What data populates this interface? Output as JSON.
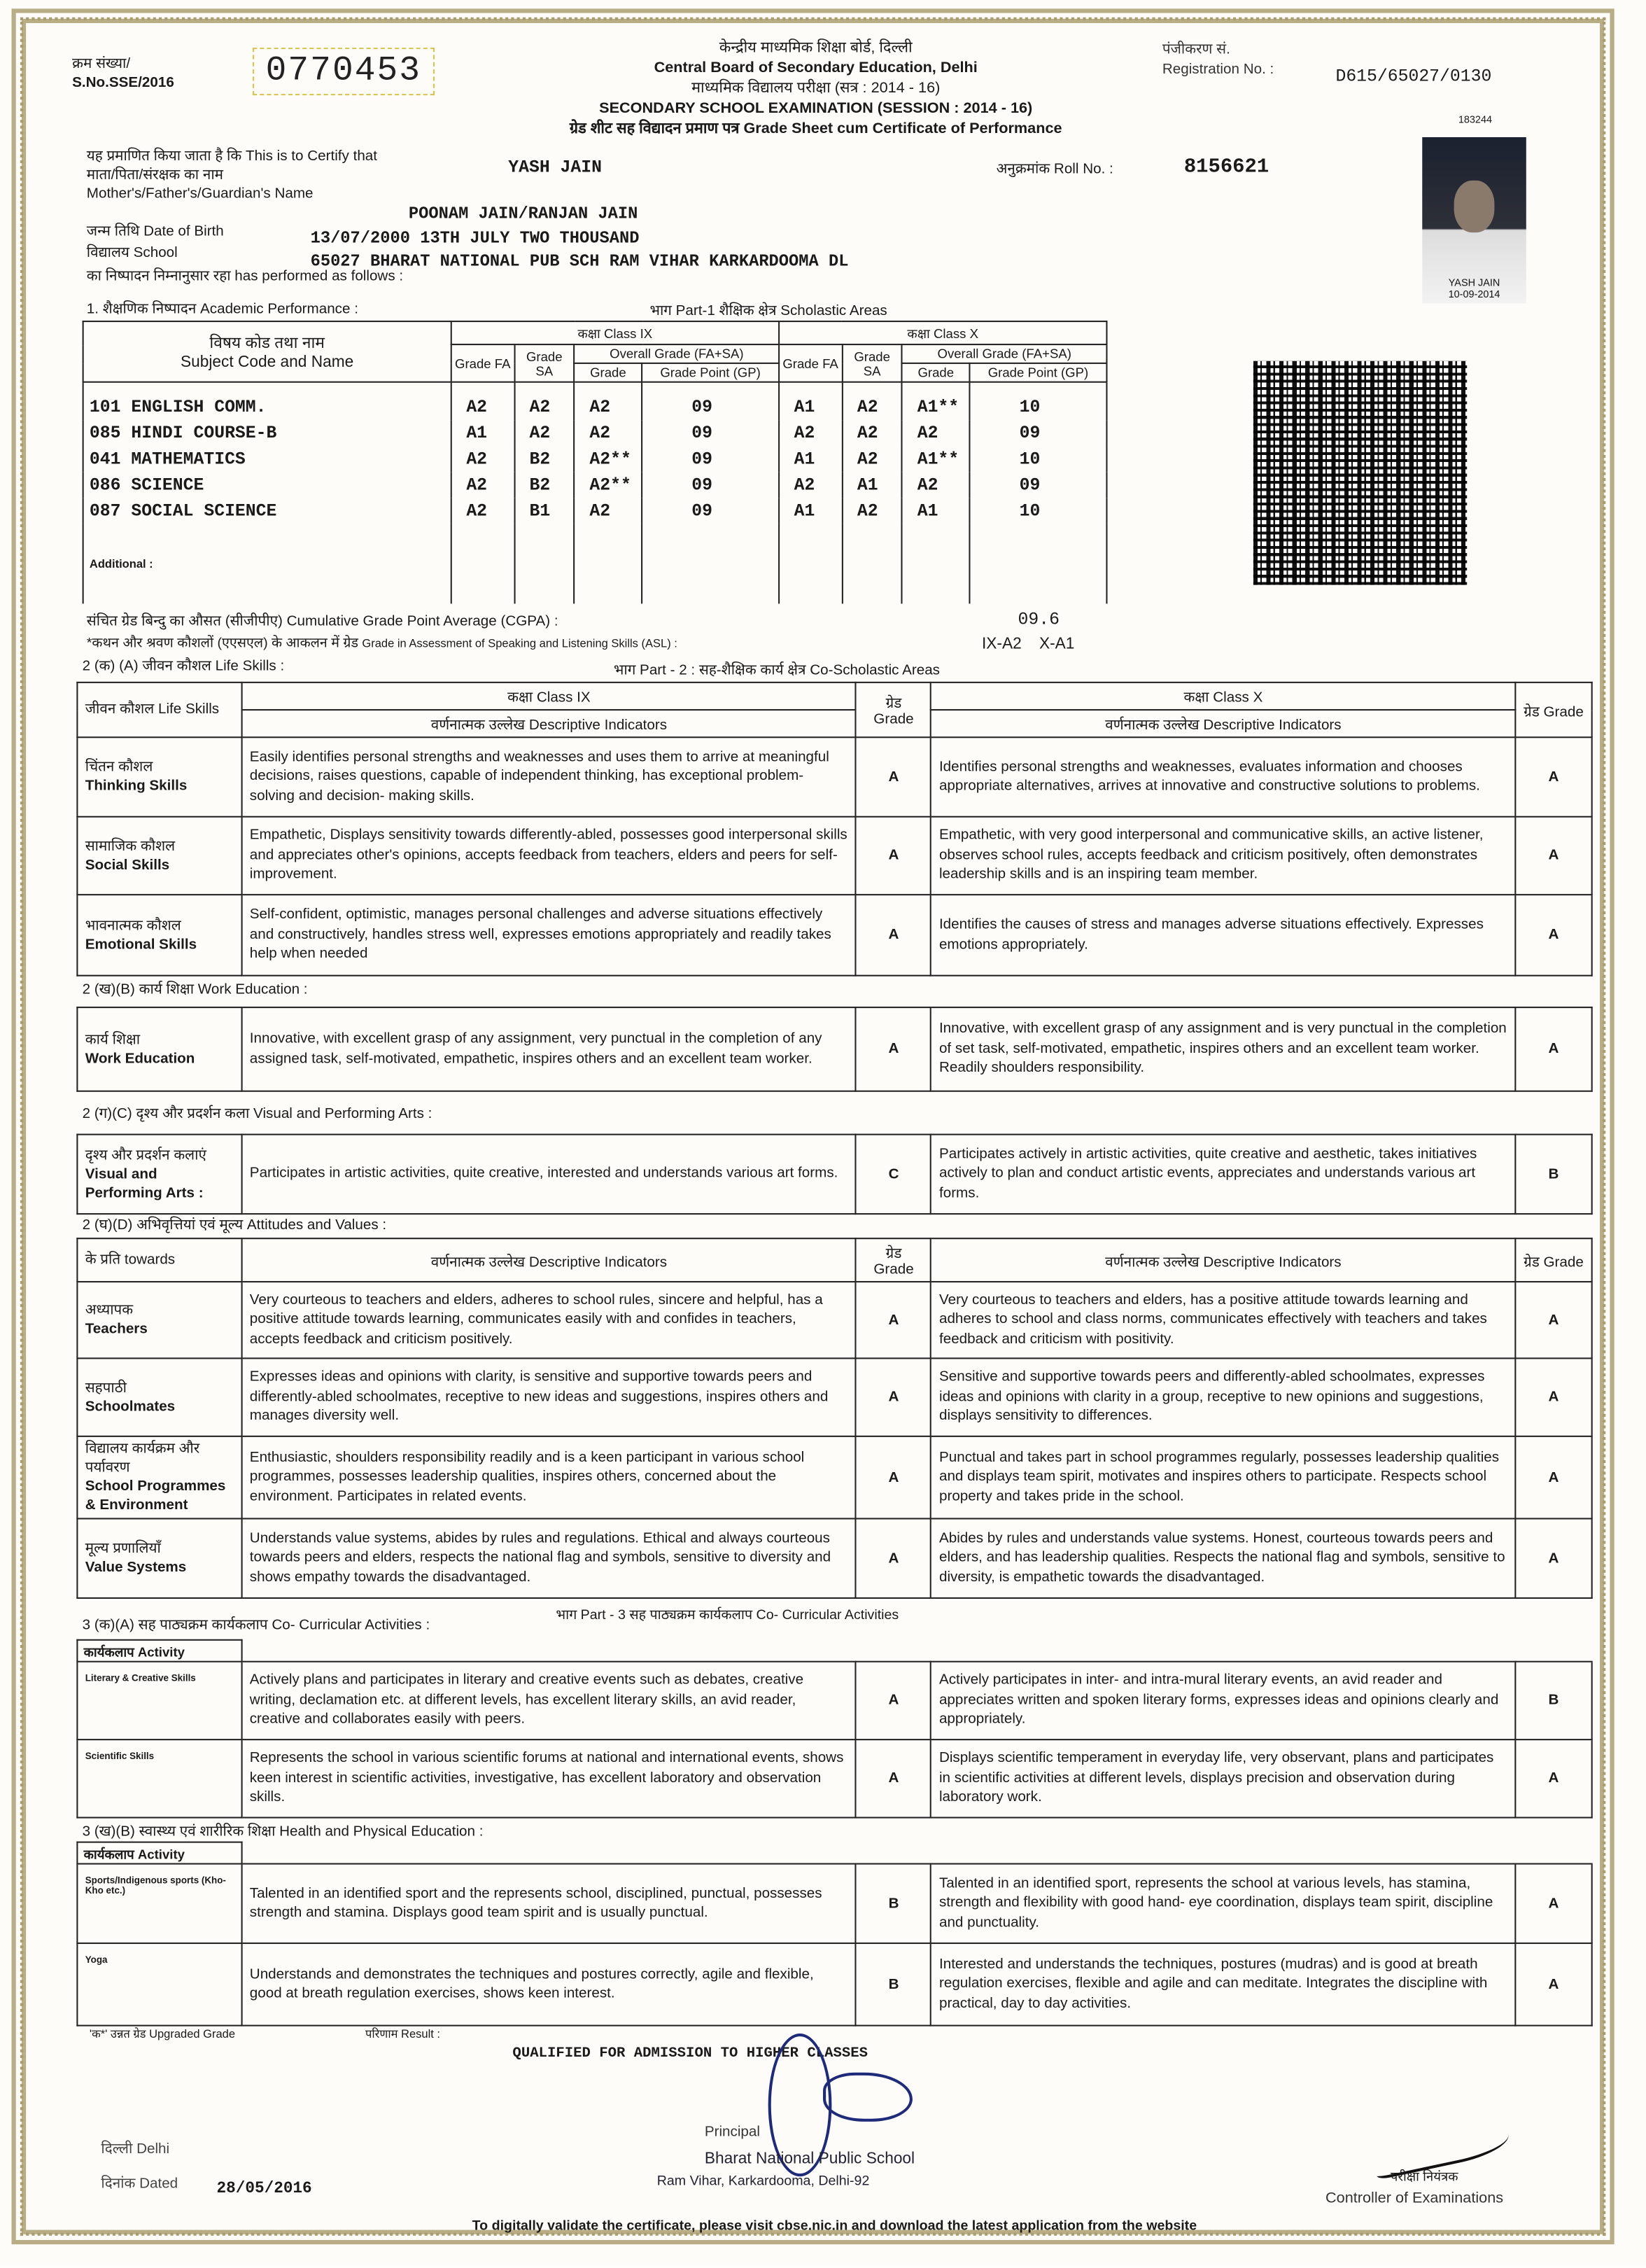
{
  "header": {
    "sno_label_hi": "क्रम संख्या/",
    "sno_label": "S.No.SSE/2016",
    "sno": "0770453",
    "board_hi": "केन्द्रीय माध्यमिक शिक्षा बोर्ड, दिल्ली",
    "board": "Central Board of Secondary Education, Delhi",
    "exam_hi": "माध्यमिक विद्यालय परीक्षा (सत्र : 2014 - 16)",
    "exam": "SECONDARY SCHOOL EXAMINATION (SESSION : 2014 - 16)",
    "title": "ग्रेड शीट सह विद्यादन प्रमाण पत्र Grade Sheet cum Certificate of Performance",
    "reg_label_hi": "पंजीकरण सं.",
    "reg_label": "Registration No. :",
    "reg": "D615/65027/0130",
    "code": "183244",
    "photo_caption": "YASH JAIN",
    "photo_date": "10-09-2014"
  },
  "student": {
    "certify_hi": "यह प्रमाणित किया जाता है कि",
    "certify": "This is to Certify that",
    "name": "YASH JAIN",
    "roll_label": "अनुक्रमांक Roll No. :",
    "roll": "8156621",
    "parent_hi": "माता/पिता/संरक्षक का नाम",
    "parent_label": "Mother's/Father's/Guardian's Name",
    "parents": "POONAM JAIN/RANJAN JAIN",
    "dob_label": "जन्म तिथि  Date of Birth",
    "dob": "13/07/2000  13TH JULY TWO THOUSAND",
    "school_label": "विद्यालय  School",
    "school": "65027  BHARAT NATIONAL PUB SCH RAM VIHAR KARKARDOOMA DL",
    "performed_hi": "का निष्पादन निम्नानुसार रहा",
    "performed": "has performed as follows :"
  },
  "academic": {
    "heading": "1. शैक्षणिक निष्पादन  Academic Performance :",
    "part": "भाग Part-1 शैक्षिक क्षेत्र Scholastic Areas",
    "subj_hi": "विषय कोड तथा नाम",
    "subj": "Subject Code and Name",
    "class_ix": "कक्षा  Class IX",
    "class_x": "कक्षा  Class X",
    "grade_fa": "Grade FA",
    "grade_sa": "Grade SA",
    "overall": "Overall Grade (FA+SA)",
    "grade": "Grade",
    "gp": "Grade Point (GP)",
    "rows": [
      [
        "101 ENGLISH COMM.",
        "A2",
        "A2",
        "A2",
        "09",
        "A1",
        "A2",
        "A1**",
        "10"
      ],
      [
        "085 HINDI COURSE-B",
        "A1",
        "A2",
        "A2",
        "09",
        "A2",
        "A2",
        "A2",
        "09"
      ],
      [
        "041 MATHEMATICS",
        "A2",
        "B2",
        "A2**",
        "09",
        "A1",
        "A2",
        "A1**",
        "10"
      ],
      [
        "086 SCIENCE",
        "A2",
        "B2",
        "A2**",
        "09",
        "A2",
        "A1",
        "A2",
        "09"
      ],
      [
        "087 SOCIAL SCIENCE",
        "A2",
        "B1",
        "A2",
        "09",
        "A1",
        "A2",
        "A1",
        "10"
      ]
    ],
    "additional": "Additional :",
    "cgpa_label": "संचित ग्रेड बिन्दु का औसत (सीजीपीए) Cumulative Grade Point Average (CGPA) :",
    "cgpa": "09.6",
    "asl_label_hi": "*कथन और श्रवण कौशलों (एएसएल) के आकलन में ग्रेड",
    "asl_label": "Grade in Assessment of Speaking and Listening Skills (ASL) :",
    "asl": "IX-A2    X-A1"
  },
  "part2": "भाग Part - 2 : सह-शैक्षिक कार्य क्षेत्र Co-Scholastic Areas",
  "life": {
    "heading": "2 (क) (A) जीवन कौशल Life Skills :",
    "col0": "जीवन कौशल Life Skills",
    "ix": "कक्षा Class IX",
    "x": "कक्षा Class X",
    "desc": "वर्णनात्मक उल्लेख  Descriptive Indicators",
    "grade": "ग्रेड Grade",
    "rows": [
      {
        "hi": "चिंतन कौशल",
        "en": "Thinking Skills",
        "ix": "Easily identifies personal strengths and weaknesses and uses them to arrive at meaningful decisions, raises questions, capable of independent thinking, has exceptional problem- solving and decision- making skills.",
        "ixg": "A",
        "x": "Identifies personal strengths and weaknesses, evaluates information and chooses appropriate  alternatives, arrives at innovative and constructive solutions to problems.",
        "xg": "A"
      },
      {
        "hi": "सामाजिक कौशल",
        "en": "Social Skills",
        "ix": "Empathetic, Displays sensitivity towards  differently-abled, possesses good interpersonal skills and appreciates other's opinions, accepts feedback from teachers, elders and peers for self-improvement.",
        "ixg": "A",
        "x": "Empathetic, with very good interpersonal and communicative skills, an active listener, observes school rules, accepts feedback and criticism positively, often demonstrates leadership skills and is an inspiring team member.",
        "xg": "A"
      },
      {
        "hi": "भावनात्मक कौशल",
        "en": "Emotional Skills",
        "ix": "Self-confident, optimistic, manages personal challenges and adverse situations effectively and constructively, handles stress well, expresses emotions appropriately and readily takes help  when needed",
        "ixg": "A",
        "x": "Identifies the causes of stress and manages adverse situations effectively. Expresses emotions appropriately.",
        "xg": "A"
      }
    ]
  },
  "work": {
    "heading": "2 (ख)(B) कार्य शिक्षा Work Education :",
    "rows": [
      {
        "hi": "कार्य शिक्षा",
        "en": "Work Education",
        "ix": "Innovative, with excellent grasp of any assignment, very punctual in the completion of any assigned task, self-motivated, empathetic, inspires others and an excellent team worker.",
        "ixg": "A",
        "x": "Innovative, with excellent grasp of any assignment and is very punctual in the completion of set task, self-motivated, empathetic, inspires others and an excellent team worker. Readily shoulders responsibility.",
        "xg": "A"
      }
    ]
  },
  "visual": {
    "heading": "2 (ग)(C) दृश्य और प्रदर्शन कला Visual and Performing Arts :",
    "rows": [
      {
        "hi": "दृश्य और प्रदर्शन कलाएं",
        "en": "Visual and Performing Arts :",
        "ix": "Participates in artistic activities, quite creative, interested and understands various art forms.",
        "ixg": "C",
        "x": "Participates actively in artistic activities, quite creative and aesthetic, takes initiatives actively to plan and conduct artistic events, appreciates and understands various art forms.",
        "xg": "B"
      }
    ]
  },
  "attitudes": {
    "heading": "2 (घ)(D) अभिवृत्तियां एवं मूल्य Attitudes and Values :",
    "col0": "के प्रति towards",
    "desc": "वर्णनात्मक उल्लेख  Descriptive Indicators",
    "grade": "ग्रेड Grade",
    "rows": [
      {
        "hi": "अध्यापक",
        "en": "Teachers",
        "ix": "Very courteous to  teachers and elders, adheres to school rules, sincere and helpful, has a  positive attitude towards learning, communicates easily with and confides in teachers, accepts feedback and criticism positively.",
        "ixg": "A",
        "x": "Very courteous to teachers and elders, has a positive attitude towards learning and adheres to school and class norms, communicates effectively with teachers and takes feedback and criticism with positivity.",
        "xg": "A"
      },
      {
        "hi": "सहपाठी",
        "en": "Schoolmates",
        "ix": "Expresses ideas and opinions with clarity, is sensitive and supportive towards peers and differently-abled schoolmates, receptive to new ideas and suggestions, inspires others and manages diversity well.",
        "ixg": "A",
        "x": "Sensitive and  supportive towards peers and differently-abled schoolmates, expresses ideas and opinions with clarity in a group, receptive to new opinions and suggestions, displays sensitivity to differences.",
        "xg": "A"
      },
      {
        "hi": "विद्यालय कार्यक्रम और पर्यावरण",
        "en": "School Programmes & Environment",
        "ix": "Enthusiastic, shoulders responsibility readily and is a keen participant in various school programmes, possesses leadership qualities, inspires others, concerned about the environment. Participates in related events.",
        "ixg": "A",
        "x": "Punctual and takes part in school programmes regularly, possesses leadership qualities and displays team spirit, motivates and inspires others to participate. Respects school property and takes pride in the school.",
        "xg": "A"
      },
      {
        "hi": "मूल्य प्रणालियाँ",
        "en": "Value Systems",
        "ix": "Understands value systems, abides by rules and regulations. Ethical and always courteous towards peers and elders, respects the national flag and symbols, sensitive to diversity and shows empathy towards the disadvantaged.",
        "ixg": "A",
        "x": "Abides by rules  and understands value systems. Honest, courteous towards peers and elders, and has leadership qualities. Respects the national flag and symbols, sensitive to diversity, is empathetic towards the  disadvantaged.",
        "xg": "A"
      }
    ]
  },
  "part3": "भाग  Part - 3 सह पाठ्यक्रम कार्यकलाप Co- Curricular Activities",
  "cocurricular": {
    "heading": "3 (क)(A) सह पाठ्यक्रम कार्यकलाप Co- Curricular Activities :",
    "col0": "कार्यकलाप  Activity",
    "rows": [
      {
        "en": "Literary & Creative Skills",
        "ix": "Actively plans and participates in literary and creative events such as debates, creative writing, declamation etc. at different levels, has excellent literary skills, an avid reader, creative and collaborates easily with peers.",
        "ixg": "A",
        "x": "Actively participates in inter- and intra-mural literary events, an avid reader and appreciates written and spoken literary forms, expresses ideas and opinions clearly and appropriately.",
        "xg": "B"
      },
      {
        "en": "Scientific Skills",
        "ix": "Represents the school in various scientific forums at national and international events, shows keen interest in scientific activities, investigative, has excellent laboratory and observation skills.",
        "ixg": "A",
        "x": "Displays scientific temperament in everyday life, very observant, plans and participates in scientific activities at different levels, displays precision and observation during laboratory work.",
        "xg": "A"
      }
    ]
  },
  "health": {
    "heading": "3 (ख)(B) स्वास्थ्य एवं शारीरिक शिक्षा Health and Physical Education :",
    "col0": "कार्यकलाप  Activity",
    "rows": [
      {
        "en": "Sports/Indigenous sports (Kho-Kho etc.)",
        "ix": "Talented in an identified sport and the represents school, disciplined, punctual, possesses strength and stamina. Displays good team spirit and is usually punctual.",
        "ixg": "B",
        "x": "Talented in an identified sport, represents the school at various levels, has stamina, strength and flexibility with good hand- eye coordination, displays team spirit, discipline and punctuality.",
        "xg": "A"
      },
      {
        "en": "Yoga",
        "ix": "Understands and demonstrates the techniques and postures correctly, agile and flexible, good at breath regulation exercises, shows keen interest.",
        "ixg": "B",
        "x": "Interested and understands the techniques, postures (mudras) and is good at breath regulation exercises, flexible and agile and can meditate. Integrates the discipline with practical, day to day activities.",
        "xg": "A"
      }
    ]
  },
  "footer": {
    "upgraded": "'क*' उन्नत ग्रेड  Upgraded Grade",
    "result_label": "परिणाम  Result :",
    "result": "QUALIFIED FOR ADMISSION TO HIGHER CLASSES",
    "place": "दिल्ली  Delhi",
    "dated_label": "दिनांक  Dated",
    "dated": "28/05/2016",
    "principal": "Principal",
    "school1": "Bharat National Public School",
    "school2": "Ram Vihar, Karkardooma, Delhi-92",
    "controller_hi": "परीक्षा नियंत्रक",
    "controller": "Controller of Examinations",
    "validate": "To digitally validate the certificate, please visit cbse.nic.in and download the latest application from the website"
  }
}
